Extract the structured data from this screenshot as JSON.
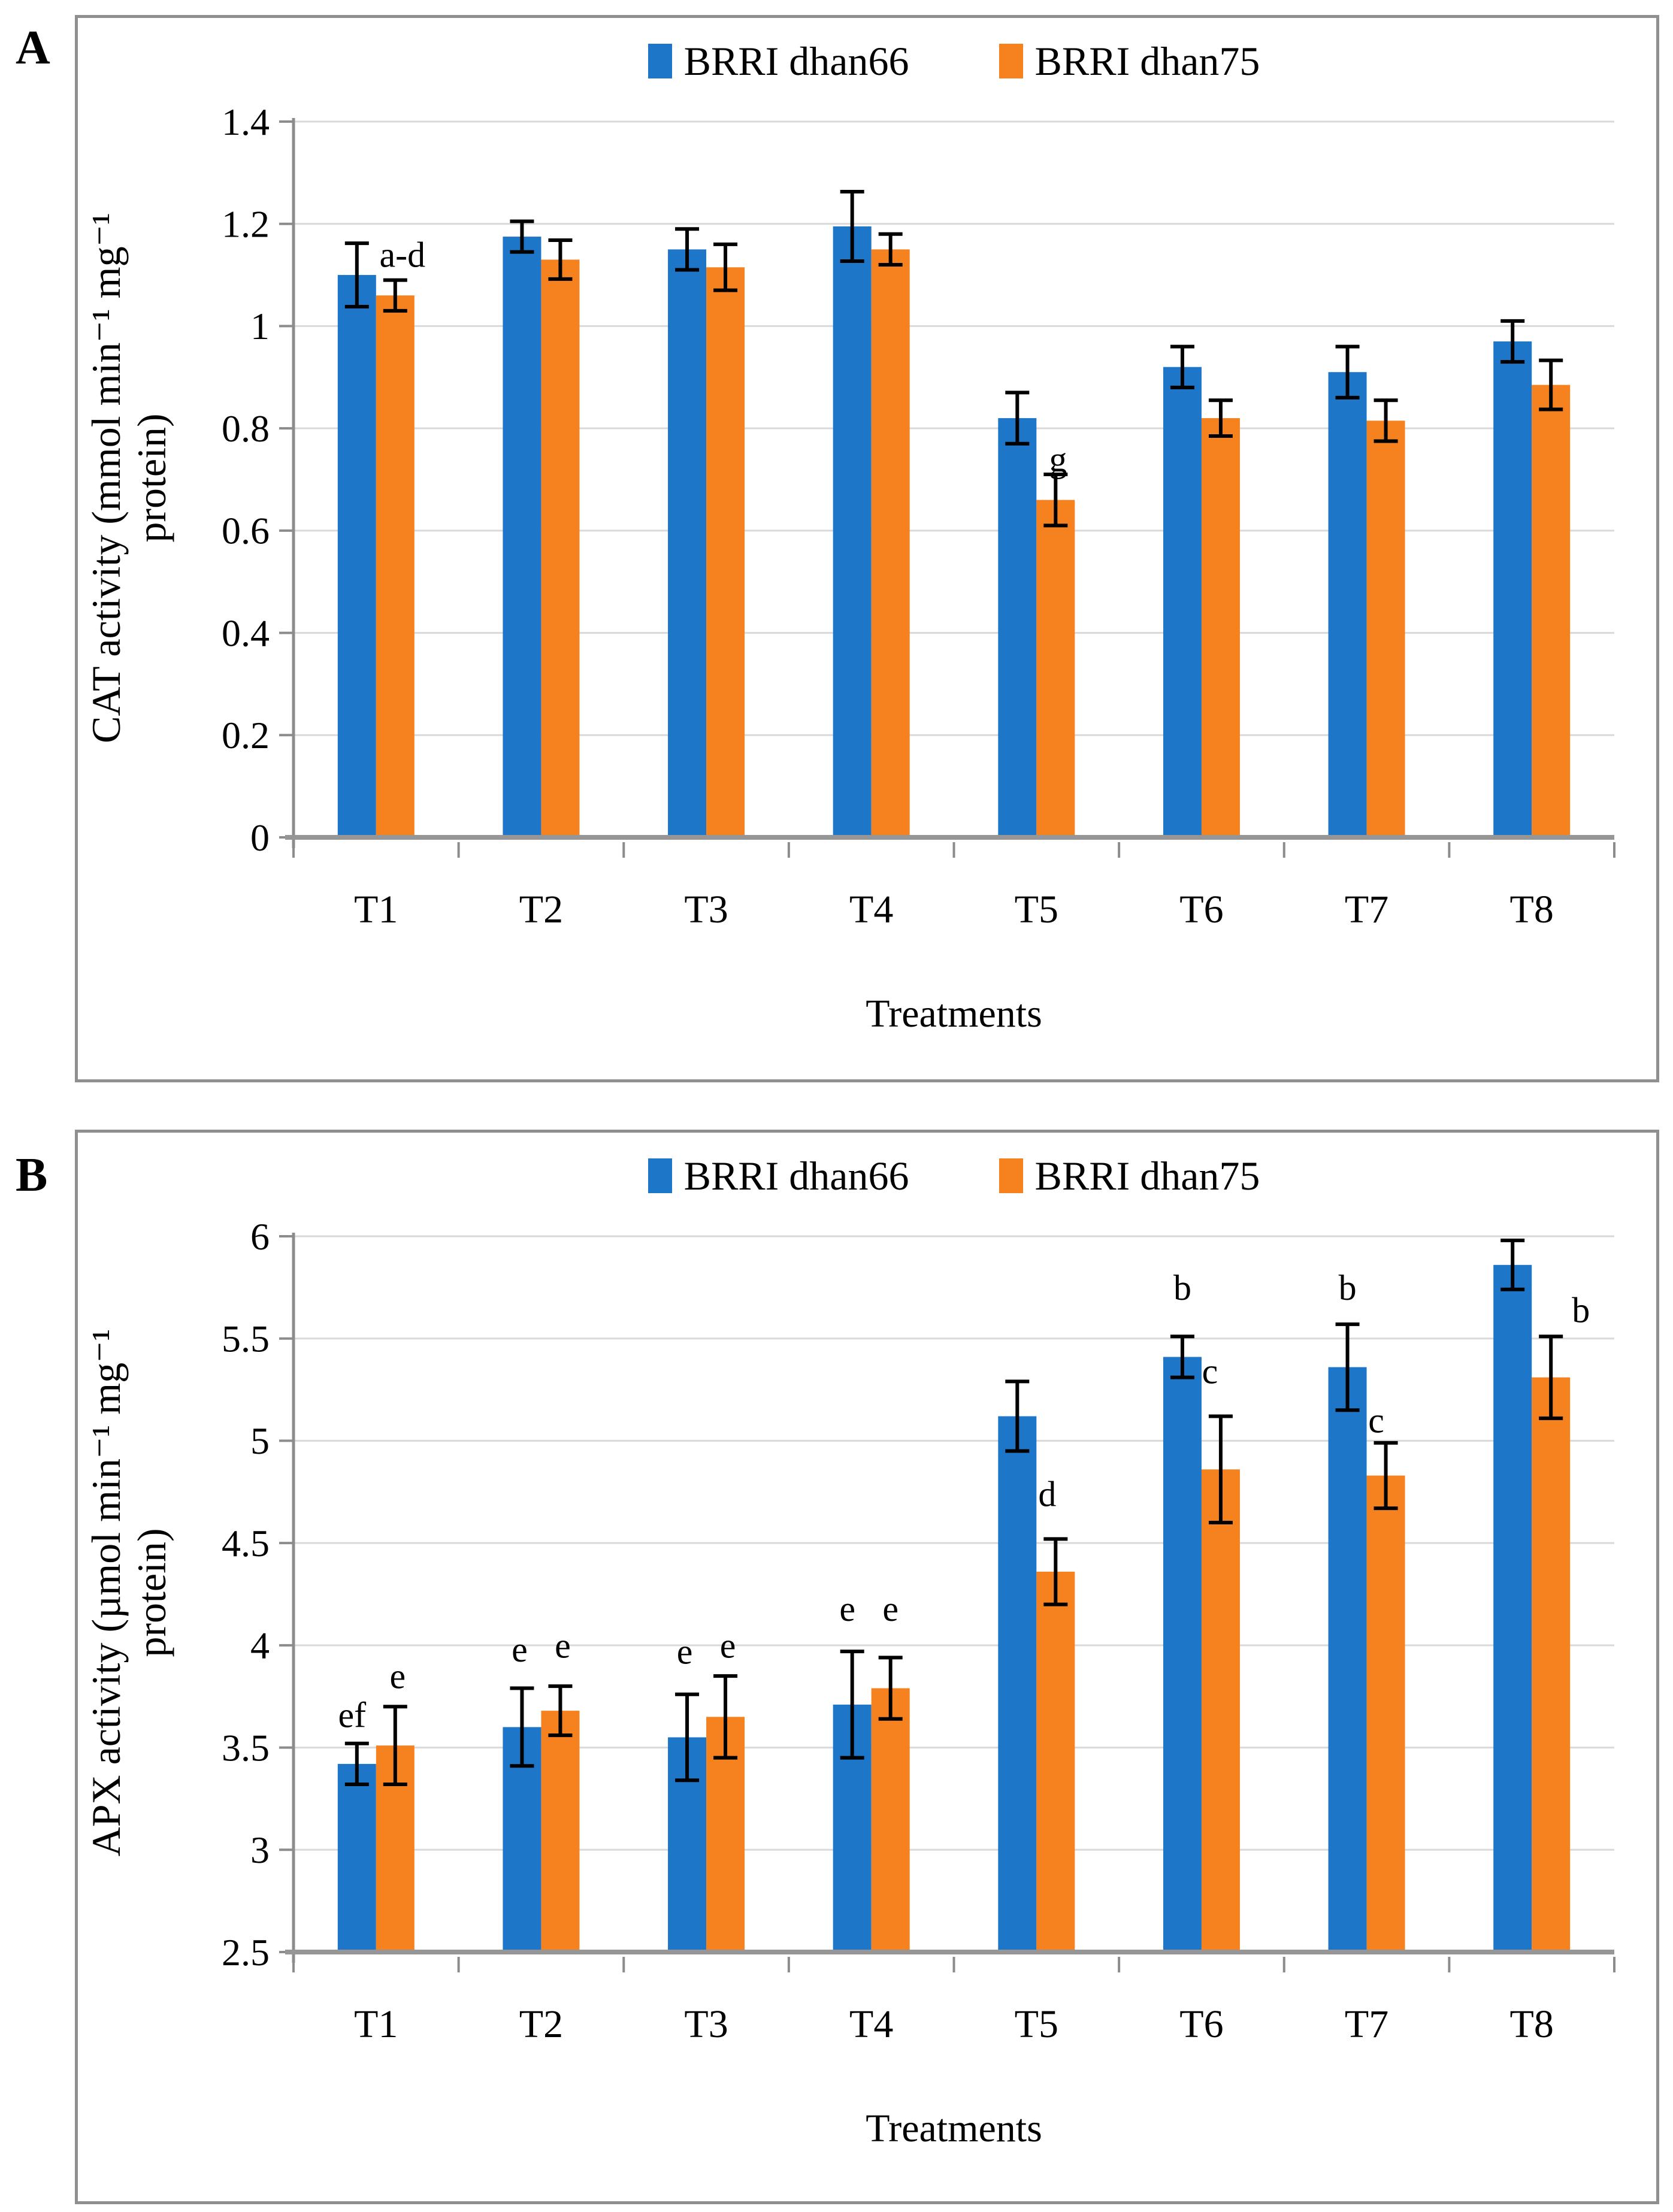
{
  "chart_data": [
    {
      "type": "bar",
      "panel_label": "A",
      "xlabel": "Treatments",
      "ylabel_line1": "CAT activity (mmol min⁻¹ mg⁻¹",
      "ylabel_line2": "protein)",
      "categories": [
        "T1",
        "T2",
        "T3",
        "T4",
        "T5",
        "T6",
        "T7",
        "T8"
      ],
      "ymin": 0,
      "ymax": 1.4,
      "grid": true,
      "legend_position": "top",
      "yticks": [
        {
          "v": 0,
          "label": "0"
        },
        {
          "v": 0.2,
          "label": "0.2"
        },
        {
          "v": 0.4,
          "label": "0.4"
        },
        {
          "v": 0.6,
          "label": "0.6"
        },
        {
          "v": 0.8,
          "label": "0.8"
        },
        {
          "v": 1,
          "label": "1"
        },
        {
          "v": 1.2,
          "label": "1.2"
        },
        {
          "v": 1.4,
          "label": "1.4"
        }
      ],
      "series": [
        {
          "name": "BRRI dhan66",
          "color": "#1E76C8",
          "values": [
            1.1,
            1.175,
            1.15,
            1.195,
            0.82,
            0.92,
            0.91,
            0.97
          ],
          "errors": [
            0.062,
            0.03,
            0.04,
            0.068,
            0.05,
            0.04,
            0.05,
            0.04
          ]
        },
        {
          "name": "BRRI dhan75",
          "color": "#F5821F",
          "values": [
            1.06,
            1.13,
            1.115,
            1.15,
            0.66,
            0.82,
            0.815,
            0.885
          ],
          "errors": [
            0.03,
            0.038,
            0.045,
            0.03,
            0.05,
            0.035,
            0.04,
            0.048
          ]
        }
      ],
      "annotations": [
        {
          "series": 0,
          "group": 0,
          "text": "a-d",
          "dx": 76,
          "y": 1.14
        },
        {
          "series": 1,
          "group": 4,
          "text": "g",
          "dx": 4,
          "y": 0.74
        }
      ]
    },
    {
      "type": "bar",
      "panel_label": "B",
      "xlabel": "Treatments",
      "ylabel_line1": "APX activity (µmol min⁻¹ mg⁻¹",
      "ylabel_line2": "protein)",
      "categories": [
        "T1",
        "T2",
        "T3",
        "T4",
        "T5",
        "T6",
        "T7",
        "T8"
      ],
      "ymin": 2.5,
      "ymax": 6,
      "grid": true,
      "legend_position": "top",
      "yticks": [
        {
          "v": 2.5,
          "label": "2.5"
        },
        {
          "v": 3,
          "label": "3"
        },
        {
          "v": 3.5,
          "label": "3.5"
        },
        {
          "v": 4,
          "label": "4"
        },
        {
          "v": 4.5,
          "label": "4.5"
        },
        {
          "v": 5,
          "label": "5"
        },
        {
          "v": 5.5,
          "label": "5.5"
        },
        {
          "v": 6,
          "label": "6"
        }
      ],
      "series": [
        {
          "name": "BRRI dhan66",
          "color": "#1E76C8",
          "values": [
            3.42,
            3.6,
            3.55,
            3.71,
            5.12,
            5.41,
            5.36,
            5.86
          ],
          "errors": [
            0.1,
            0.19,
            0.21,
            0.26,
            0.17,
            0.1,
            0.21,
            0.12
          ]
        },
        {
          "name": "BRRI dhan75",
          "color": "#F5821F",
          "values": [
            3.51,
            3.68,
            3.65,
            3.79,
            4.36,
            4.86,
            4.83,
            5.31
          ],
          "errors": [
            0.19,
            0.12,
            0.2,
            0.15,
            0.16,
            0.26,
            0.16,
            0.2
          ]
        }
      ],
      "annotations": [
        {
          "series": 0,
          "group": 0,
          "text": "ef",
          "dx": -8,
          "y": 3.66
        },
        {
          "series": 1,
          "group": 0,
          "text": "e",
          "dx": 4,
          "y": 3.85
        },
        {
          "series": 0,
          "group": 1,
          "text": "e",
          "dx": -4,
          "y": 3.98
        },
        {
          "series": 1,
          "group": 1,
          "text": "e",
          "dx": 4,
          "y": 4.0
        },
        {
          "series": 0,
          "group": 2,
          "text": "e",
          "dx": -4,
          "y": 3.97
        },
        {
          "series": 1,
          "group": 2,
          "text": "e",
          "dx": 4,
          "y": 4.0
        },
        {
          "series": 0,
          "group": 3,
          "text": "e",
          "dx": -8,
          "y": 4.18
        },
        {
          "series": 1,
          "group": 3,
          "text": "e",
          "dx": 0,
          "y": 4.18
        },
        {
          "series": 1,
          "group": 4,
          "text": "d",
          "dx": -14,
          "y": 4.74
        },
        {
          "series": 0,
          "group": 5,
          "text": "b",
          "dx": 0,
          "y": 5.75
        },
        {
          "series": 1,
          "group": 5,
          "text": "c",
          "dx": -18,
          "y": 5.34
        },
        {
          "series": 0,
          "group": 6,
          "text": "b",
          "dx": 0,
          "y": 5.75
        },
        {
          "series": 1,
          "group": 6,
          "text": "c",
          "dx": -16,
          "y": 5.1
        },
        {
          "series": 1,
          "group": 7,
          "text": "b",
          "dx": 50,
          "y": 5.64
        }
      ]
    }
  ]
}
